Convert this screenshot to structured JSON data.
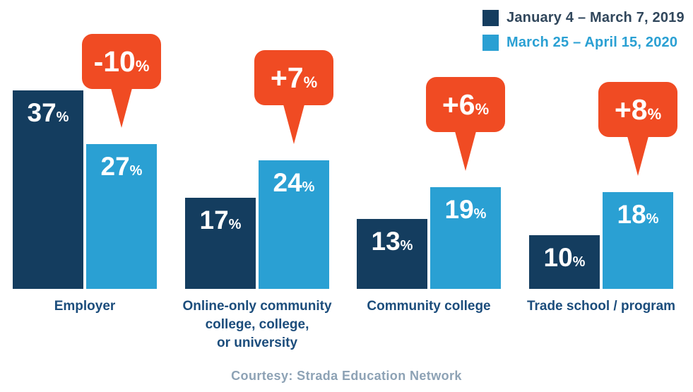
{
  "chart_data": {
    "type": "bar",
    "categories": [
      "Employer",
      "Online-only community\ncollege, college,\nor university",
      "Community college",
      "Trade school / program"
    ],
    "series": [
      {
        "name": "January 4 – March 7, 2019",
        "values": [
          37,
          17,
          13,
          10
        ],
        "color": "#143d5f",
        "label_color": "#31475c"
      },
      {
        "name": "March 25 – April 15, 2020",
        "values": [
          27,
          24,
          19,
          18
        ],
        "color": "#2aa0d3",
        "label_color": "#2aa0d3"
      }
    ],
    "changes": [
      "-10",
      "+7",
      "+6",
      "+8"
    ],
    "value_suffix": "%",
    "accent_color": "#f04b23",
    "value_label_color": "#ffffff",
    "legend_position": "top-right",
    "grid": false,
    "footer": "Courtesy: Strada Education Network"
  }
}
